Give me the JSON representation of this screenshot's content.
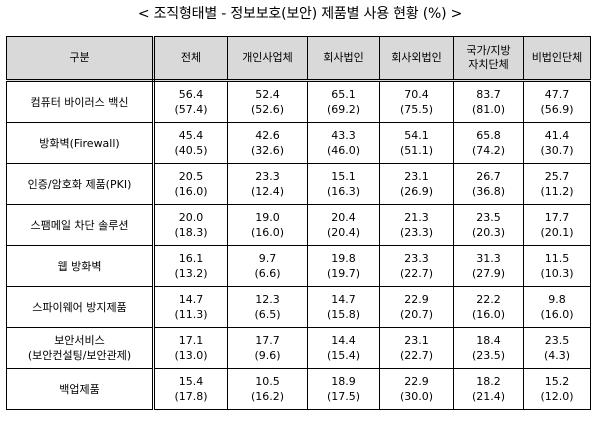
{
  "title": "< 조직형태별 - 정보보호(보안) 제품별 사용 현황 (%) >",
  "table": {
    "headers": [
      "구분",
      "전체",
      "개인사업체",
      "회사법인",
      "회사외법인",
      "국가/지방\n자치단체",
      "비법인단체"
    ],
    "rows": [
      {
        "category": [
          "컴퓨터 바이러스 백신"
        ],
        "values": [
          "56.4",
          "52.4",
          "65.1",
          "70.4",
          "83.7",
          "47.7"
        ],
        "prev": [
          "(57.4)",
          "(52.6)",
          "(69.2)",
          "(75.5)",
          "(81.0)",
          "(56.9)"
        ]
      },
      {
        "category": [
          "방화벽(Firewall)"
        ],
        "values": [
          "45.4",
          "42.6",
          "43.3",
          "54.1",
          "65.8",
          "41.4"
        ],
        "prev": [
          "(40.5)",
          "(32.6)",
          "(46.0)",
          "(51.1)",
          "(74.2)",
          "(30.7)"
        ]
      },
      {
        "category": [
          "인증/암호화 제품(PKI)"
        ],
        "values": [
          "20.5",
          "23.3",
          "15.1",
          "23.1",
          "26.7",
          "25.7"
        ],
        "prev": [
          "(16.0)",
          "(12.4)",
          "(16.3)",
          "(26.9)",
          "(36.8)",
          "(11.2)"
        ]
      },
      {
        "category": [
          "스팸메일 차단 솔루션"
        ],
        "values": [
          "20.0",
          "19.0",
          "20.4",
          "21.3",
          "23.5",
          "17.7"
        ],
        "prev": [
          "(18.3)",
          "(16.0)",
          "(20.4)",
          "(23.3)",
          "(20.3)",
          "(20.1)"
        ]
      },
      {
        "category": [
          "웹 방화벽"
        ],
        "values": [
          "16.1",
          "9.7",
          "19.8",
          "23.3",
          "31.3",
          "11.5"
        ],
        "prev": [
          "(13.2)",
          "(6.6)",
          "(19.7)",
          "(22.7)",
          "(27.9)",
          "(10.3)"
        ]
      },
      {
        "category": [
          "스파이웨어 방지제품"
        ],
        "values": [
          "14.7",
          "12.3",
          "14.7",
          "22.9",
          "22.2",
          "9.8"
        ],
        "prev": [
          "(11.3)",
          "(6.5)",
          "(15.8)",
          "(20.7)",
          "(16.0)",
          "(16.0)"
        ]
      },
      {
        "category": [
          "보안서비스",
          "(보안컨설팅/보안관제)"
        ],
        "values": [
          "17.1",
          "17.7",
          "14.4",
          "23.1",
          "18.4",
          "23.5"
        ],
        "prev": [
          "(13.0)",
          "(9.6)",
          "(15.4)",
          "(22.7)",
          "(23.5)",
          "(4.3)"
        ]
      },
      {
        "category": [
          "백업제품"
        ],
        "values": [
          "15.4",
          "10.5",
          "18.9",
          "22.9",
          "18.2",
          "15.2"
        ],
        "prev": [
          "(17.8)",
          "(16.2)",
          "(17.5)",
          "(30.0)",
          "(21.4)",
          "(12.0)"
        ]
      }
    ]
  }
}
